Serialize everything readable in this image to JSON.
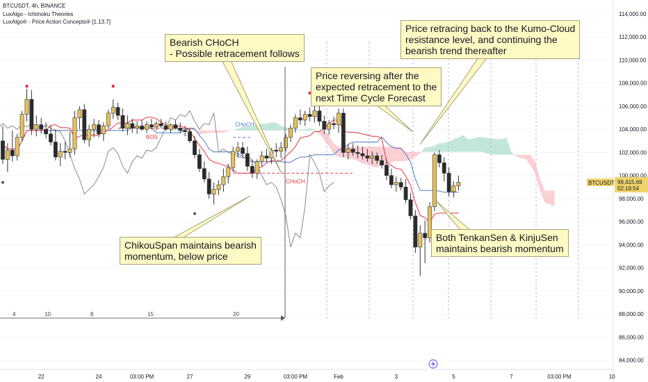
{
  "header": {
    "symbol_line": "BTCUSDT, 4h, BINANCE",
    "indicator_1": "LuxAlgo - Ichimoku Theories",
    "indicator_2": "LuxAlgo® - Price Action Concepts® [1.13.7]"
  },
  "price_tag": {
    "symbol": "BTCUSDT",
    "price": "99,415.69",
    "countdown": "02:18:54",
    "color": "#f0d46b"
  },
  "annotations": [
    {
      "id": "choch",
      "text": "Bearish CHoCH\n- Possible retracement follows"
    },
    {
      "id": "reversing",
      "text": "Price reversing after the\nexpected retracement to the\nnext Time Cycle Forecast"
    },
    {
      "id": "kumo",
      "text": "Price retracing back to the Kumo-Cloud\nresistance level, and continuing the\nbearish trend thereafter"
    },
    {
      "id": "chikou",
      "text": "ChikouSpan maintains bearish\nmomentum, below price"
    },
    {
      "id": "tenkan",
      "text": "Both TenkanSen & KinjuSen\nmaintains bearish momentum"
    }
  ],
  "chart_labels": {
    "bos": "BOS",
    "choch_small_1": "CHoCH",
    "choch_small_2": "CHoCH"
  },
  "cycle_ruler": [
    "4",
    "10",
    "8",
    "15",
    "20"
  ],
  "colors": {
    "up": "#e8c15b",
    "down": "#2b2b2b",
    "tenkan": "#e5323c",
    "kijun": "#4a79c8",
    "chikou": "#888888",
    "cloud_bull": "#8fd1be",
    "cloud_bear": "#f6a9b0",
    "callout_bg": "#fff9c4"
  },
  "chart_data": {
    "type": "candlestick",
    "symbol": "BTCUSDT",
    "timeframe": "4h",
    "exchange": "BINANCE",
    "y_ticks": [
      84000,
      86000,
      88000,
      90000,
      92000,
      94000,
      96000,
      98000,
      100000,
      102000,
      104000,
      106000,
      108000,
      110000,
      112000,
      114000
    ],
    "y_tick_labels": [
      "84,000.00",
      "86,000.00",
      "88,000.00",
      "90,000.00",
      "92,000.00",
      "94,000.00",
      "96,000.00",
      "98,000.00",
      "100,000.00",
      "102,000.00",
      "104,000.00",
      "106,000.00",
      "108,000.00",
      "110,000.00",
      "112,000.00",
      "114,000.00"
    ],
    "ylim": [
      83200,
      115200
    ],
    "x_labels": [
      "22",
      "24",
      "03:00 PM",
      "27",
      "29",
      "03:00 PM",
      "Feb",
      "3",
      "5",
      "7",
      "03:00 PM",
      "10"
    ],
    "x_label_bar_index": [
      8,
      20,
      29,
      39,
      51,
      61,
      70,
      82,
      94,
      106,
      116,
      127
    ],
    "bar_count": 128,
    "candles": [
      {
        "o": 103000,
        "h": 104300,
        "l": 101000,
        "c": 101400
      },
      {
        "o": 101400,
        "h": 102800,
        "l": 100300,
        "c": 102200
      },
      {
        "o": 102200,
        "h": 103900,
        "l": 101200,
        "c": 101700
      },
      {
        "o": 101700,
        "h": 103600,
        "l": 101300,
        "c": 103300
      },
      {
        "o": 103300,
        "h": 105600,
        "l": 103000,
        "c": 105300
      },
      {
        "o": 105300,
        "h": 107500,
        "l": 104700,
        "c": 106600
      },
      {
        "o": 106600,
        "h": 107400,
        "l": 103500,
        "c": 104000
      },
      {
        "o": 104000,
        "h": 105200,
        "l": 103400,
        "c": 104400
      },
      {
        "o": 104400,
        "h": 105000,
        "l": 103600,
        "c": 104000
      },
      {
        "o": 104000,
        "h": 104600,
        "l": 103200,
        "c": 103600
      },
      {
        "o": 103600,
        "h": 104300,
        "l": 102600,
        "c": 102900
      },
      {
        "o": 102900,
        "h": 104000,
        "l": 101300,
        "c": 101600
      },
      {
        "o": 101600,
        "h": 102800,
        "l": 100800,
        "c": 102100
      },
      {
        "o": 102100,
        "h": 102900,
        "l": 101400,
        "c": 102000
      },
      {
        "o": 102000,
        "h": 103800,
        "l": 101600,
        "c": 102300
      },
      {
        "o": 102300,
        "h": 105600,
        "l": 101800,
        "c": 105000
      },
      {
        "o": 105000,
        "h": 106000,
        "l": 104000,
        "c": 105700
      },
      {
        "o": 105700,
        "h": 106200,
        "l": 102800,
        "c": 103100
      },
      {
        "o": 103100,
        "h": 104400,
        "l": 102500,
        "c": 104000
      },
      {
        "o": 104000,
        "h": 104900,
        "l": 103300,
        "c": 104400
      },
      {
        "o": 104400,
        "h": 104800,
        "l": 103300,
        "c": 103600
      },
      {
        "o": 103600,
        "h": 104600,
        "l": 103000,
        "c": 104300
      },
      {
        "o": 104300,
        "h": 105700,
        "l": 104000,
        "c": 105400
      },
      {
        "o": 105400,
        "h": 106600,
        "l": 104900,
        "c": 105900
      },
      {
        "o": 105900,
        "h": 106300,
        "l": 104800,
        "c": 105200
      },
      {
        "o": 105200,
        "h": 105800,
        "l": 103800,
        "c": 104100
      },
      {
        "o": 104100,
        "h": 105200,
        "l": 103500,
        "c": 104500
      },
      {
        "o": 104500,
        "h": 104900,
        "l": 103700,
        "c": 104100
      },
      {
        "o": 104100,
        "h": 104700,
        "l": 103600,
        "c": 104300
      },
      {
        "o": 104300,
        "h": 104800,
        "l": 103900,
        "c": 104000
      },
      {
        "o": 104000,
        "h": 104700,
        "l": 103700,
        "c": 104400
      },
      {
        "o": 104400,
        "h": 104900,
        "l": 104000,
        "c": 104200
      },
      {
        "o": 104200,
        "h": 104700,
        "l": 103900,
        "c": 104500
      },
      {
        "o": 104500,
        "h": 104900,
        "l": 104100,
        "c": 104300
      },
      {
        "o": 104300,
        "h": 104700,
        "l": 103900,
        "c": 104000
      },
      {
        "o": 104000,
        "h": 104500,
        "l": 103700,
        "c": 104400
      },
      {
        "o": 104400,
        "h": 104800,
        "l": 104000,
        "c": 104100
      },
      {
        "o": 104100,
        "h": 104600,
        "l": 103700,
        "c": 103900
      },
      {
        "o": 103900,
        "h": 104300,
        "l": 103400,
        "c": 103800
      },
      {
        "o": 103800,
        "h": 104100,
        "l": 102800,
        "c": 103000
      },
      {
        "o": 103000,
        "h": 103400,
        "l": 101500,
        "c": 101800
      },
      {
        "o": 101800,
        "h": 102300,
        "l": 100300,
        "c": 100600
      },
      {
        "o": 100600,
        "h": 101200,
        "l": 99400,
        "c": 99700
      },
      {
        "o": 99700,
        "h": 100300,
        "l": 98000,
        "c": 98400
      },
      {
        "o": 98400,
        "h": 99400,
        "l": 97500,
        "c": 98800
      },
      {
        "o": 98800,
        "h": 99600,
        "l": 98300,
        "c": 99200
      },
      {
        "o": 99200,
        "h": 100600,
        "l": 98600,
        "c": 99900
      },
      {
        "o": 99900,
        "h": 101000,
        "l": 99300,
        "c": 100700
      },
      {
        "o": 100700,
        "h": 102500,
        "l": 100300,
        "c": 102100
      },
      {
        "o": 102100,
        "h": 102900,
        "l": 101500,
        "c": 102400
      },
      {
        "o": 102400,
        "h": 102900,
        "l": 101600,
        "c": 101900
      },
      {
        "o": 101900,
        "h": 102500,
        "l": 100400,
        "c": 100800
      },
      {
        "o": 100800,
        "h": 101400,
        "l": 99800,
        "c": 100200
      },
      {
        "o": 100200,
        "h": 101400,
        "l": 99700,
        "c": 101200
      },
      {
        "o": 101200,
        "h": 102100,
        "l": 100800,
        "c": 101700
      },
      {
        "o": 101700,
        "h": 102300,
        "l": 101200,
        "c": 101500
      },
      {
        "o": 101500,
        "h": 102400,
        "l": 101000,
        "c": 102200
      },
      {
        "o": 102200,
        "h": 102800,
        "l": 101600,
        "c": 102100
      },
      {
        "o": 102100,
        "h": 102900,
        "l": 101500,
        "c": 102400
      },
      {
        "o": 102400,
        "h": 103600,
        "l": 102100,
        "c": 103300
      },
      {
        "o": 103300,
        "h": 104400,
        "l": 102900,
        "c": 104100
      },
      {
        "o": 104100,
        "h": 105300,
        "l": 103700,
        "c": 105000
      },
      {
        "o": 105000,
        "h": 105700,
        "l": 104400,
        "c": 104800
      },
      {
        "o": 104800,
        "h": 105600,
        "l": 104300,
        "c": 105300
      },
      {
        "o": 105300,
        "h": 105900,
        "l": 104700,
        "c": 105100
      },
      {
        "o": 105100,
        "h": 106100,
        "l": 104600,
        "c": 105600
      },
      {
        "o": 105600,
        "h": 106000,
        "l": 104300,
        "c": 104700
      },
      {
        "o": 104700,
        "h": 105200,
        "l": 103600,
        "c": 104000
      },
      {
        "o": 104000,
        "h": 104800,
        "l": 103500,
        "c": 104500
      },
      {
        "o": 104500,
        "h": 105100,
        "l": 104000,
        "c": 104400
      },
      {
        "o": 104400,
        "h": 105800,
        "l": 103700,
        "c": 105400
      },
      {
        "o": 105400,
        "h": 105800,
        "l": 101600,
        "c": 102000
      },
      {
        "o": 102000,
        "h": 102700,
        "l": 101400,
        "c": 102300
      },
      {
        "o": 102300,
        "h": 102800,
        "l": 101700,
        "c": 102000
      },
      {
        "o": 102000,
        "h": 102600,
        "l": 101500,
        "c": 101900
      },
      {
        "o": 101900,
        "h": 102500,
        "l": 101400,
        "c": 101700
      },
      {
        "o": 101700,
        "h": 102300,
        "l": 101200,
        "c": 101500
      },
      {
        "o": 101500,
        "h": 102100,
        "l": 101000,
        "c": 101700
      },
      {
        "o": 101700,
        "h": 102000,
        "l": 101000,
        "c": 101300
      },
      {
        "o": 101300,
        "h": 101800,
        "l": 100600,
        "c": 100900
      },
      {
        "o": 100900,
        "h": 101400,
        "l": 99600,
        "c": 100000
      },
      {
        "o": 100000,
        "h": 100600,
        "l": 98900,
        "c": 99200
      },
      {
        "o": 99200,
        "h": 99900,
        "l": 98600,
        "c": 99400
      },
      {
        "o": 99400,
        "h": 99800,
        "l": 98700,
        "c": 99000
      },
      {
        "o": 99000,
        "h": 99700,
        "l": 97600,
        "c": 97900
      },
      {
        "o": 97900,
        "h": 98500,
        "l": 96200,
        "c": 96500
      },
      {
        "o": 96500,
        "h": 97000,
        "l": 93300,
        "c": 93800
      },
      {
        "o": 93800,
        "h": 95700,
        "l": 91300,
        "c": 95000
      },
      {
        "o": 95000,
        "h": 96100,
        "l": 92400,
        "c": 94600
      },
      {
        "o": 94600,
        "h": 97700,
        "l": 94200,
        "c": 97300
      },
      {
        "o": 97300,
        "h": 102000,
        "l": 96900,
        "c": 101800
      },
      {
        "o": 101800,
        "h": 102200,
        "l": 100700,
        "c": 101100
      },
      {
        "o": 101100,
        "h": 101600,
        "l": 99500,
        "c": 100200
      },
      {
        "o": 100200,
        "h": 100700,
        "l": 98200,
        "c": 98600
      },
      {
        "o": 98600,
        "h": 99500,
        "l": 98100,
        "c": 99100
      },
      {
        "o": 99100,
        "h": 100000,
        "l": 98700,
        "c": 99416
      }
    ],
    "price_markers": [
      {
        "label": "BTCUSDT",
        "value": 99415.69
      }
    ]
  }
}
